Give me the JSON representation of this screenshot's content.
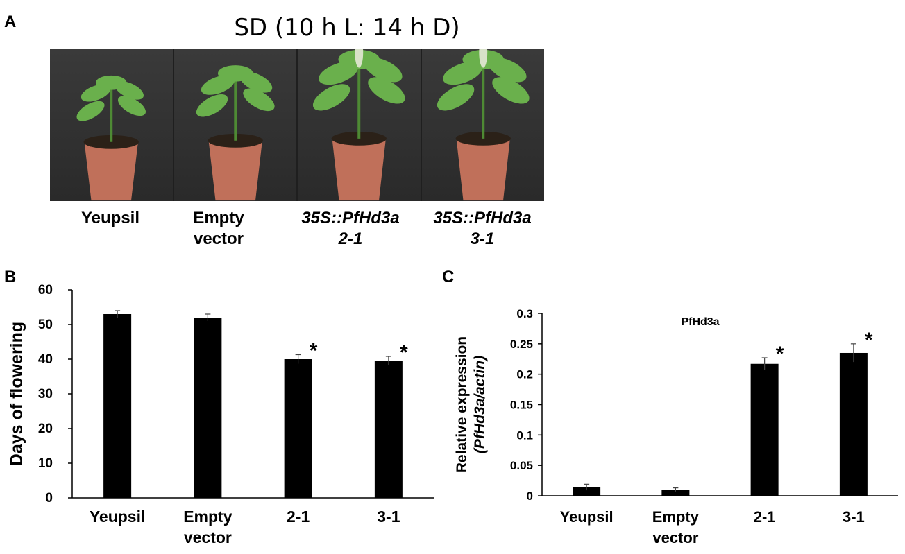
{
  "panel_a": {
    "letter": "A",
    "title": "SD (10 h L: 14 h D)",
    "captions": [
      {
        "line1": "Yeupsil",
        "line2": "",
        "italic": false
      },
      {
        "line1": "Empty",
        "line2": "vector",
        "italic": false
      },
      {
        "line1": "35S::PfHd3a",
        "line2": "2-1",
        "italic": true
      },
      {
        "line1": "35S::PfHd3a",
        "line2": "3-1",
        "italic": true
      }
    ]
  },
  "panel_b": {
    "letter": "B"
  },
  "panel_c": {
    "letter": "C"
  },
  "colors": {
    "bar": "#000000",
    "leaf": "#6ab04c",
    "pot": "#c0705a",
    "soil": "#2b2118"
  },
  "chart_data": [
    {
      "type": "bar",
      "title": "",
      "xlabel": "",
      "ylabel": "Days of flowering",
      "categories": [
        [
          "Yeupsil"
        ],
        [
          "Empty",
          "vector"
        ],
        [
          "2-1"
        ],
        [
          "3-1"
        ]
      ],
      "values": [
        53,
        52,
        40,
        39.5
      ],
      "errors": [
        1.0,
        1.0,
        1.3,
        1.3
      ],
      "significance": [
        "",
        "",
        "*",
        "*"
      ],
      "ylim": [
        0,
        60
      ],
      "yticks": [
        0,
        10,
        20,
        30,
        40,
        50,
        60
      ],
      "yticklabels": [
        "0",
        "10",
        "20",
        "30",
        "40",
        "50",
        "60"
      ],
      "grid": false
    },
    {
      "type": "bar",
      "title": "PfHd3a",
      "xlabel": "",
      "ylabel": "Relative expression",
      "ylabel2": "(PfHd3a/actin)",
      "categories": [
        [
          "Yeupsil"
        ],
        [
          "Empty",
          "vector"
        ],
        [
          "2-1"
        ],
        [
          "3-1"
        ]
      ],
      "values": [
        0.014,
        0.01,
        0.217,
        0.235
      ],
      "errors": [
        0.005,
        0.003,
        0.01,
        0.015
      ],
      "significance": [
        "",
        "",
        "*",
        "*"
      ],
      "ylim": [
        0,
        0.3
      ],
      "yticks": [
        0,
        0.05,
        0.1,
        0.15,
        0.2,
        0.25,
        0.3
      ],
      "yticklabels": [
        "0",
        "0.05",
        "0.1",
        "0.15",
        "0.2",
        "0.25",
        "0.3"
      ],
      "grid": false
    }
  ]
}
